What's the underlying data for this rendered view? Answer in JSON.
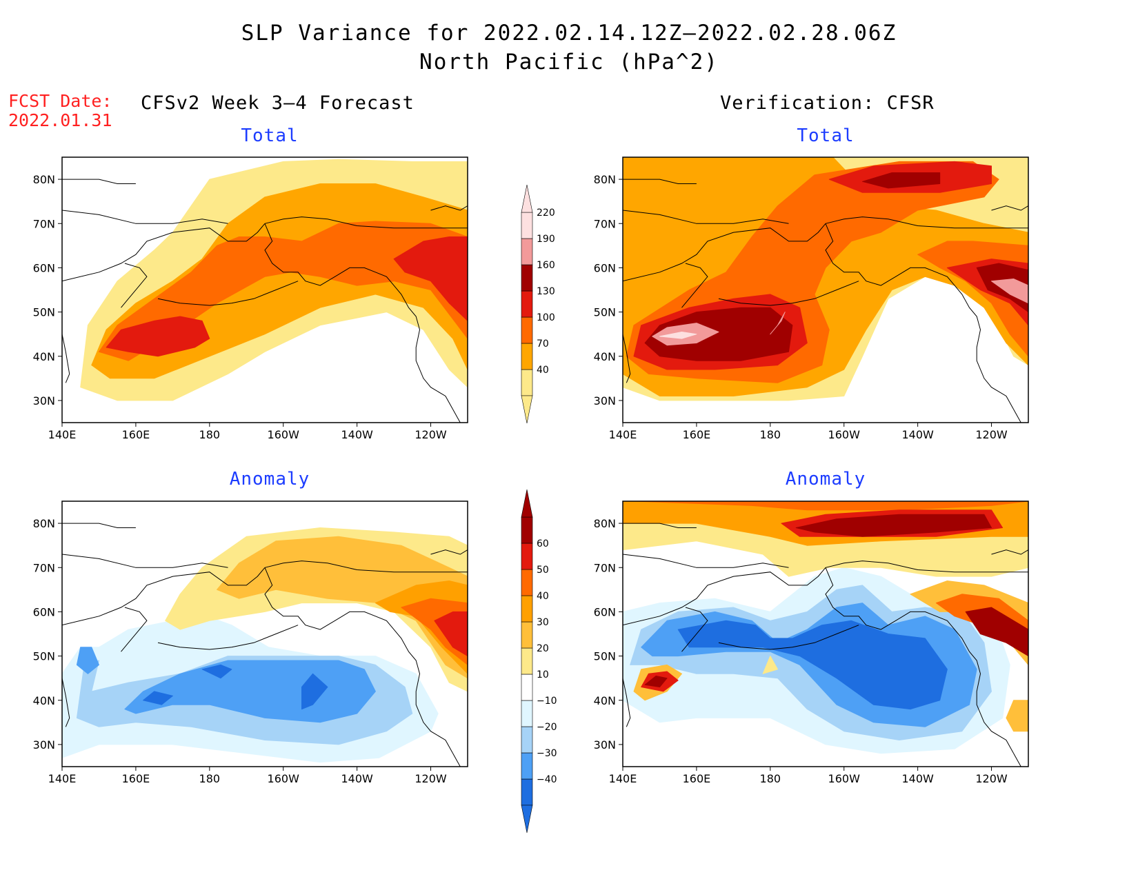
{
  "title": {
    "line1": "SLP Variance for 2022.02.14.12Z–2022.02.28.06Z",
    "line2": "North Pacific (hPa^2)"
  },
  "fcst_date": {
    "label": "FCST Date:",
    "value": "2022.01.31"
  },
  "columns": {
    "left": "CFSv2 Week 3–4 Forecast",
    "right": "Verification: CFSR"
  },
  "panels": [
    {
      "id": "forecast-total",
      "subtitle": "Total"
    },
    {
      "id": "verification-total",
      "subtitle": "Total"
    },
    {
      "id": "forecast-anomaly",
      "subtitle": "Anomaly"
    },
    {
      "id": "verification-anomaly",
      "subtitle": "Anomaly"
    }
  ],
  "axes": {
    "x_ticks": [
      "140E",
      "160E",
      "180",
      "160W",
      "140W",
      "120W"
    ],
    "y_ticks": [
      "30N",
      "40N",
      "50N",
      "60N",
      "70N",
      "80N"
    ],
    "lon_range_degE": [
      140,
      250
    ],
    "lat_range": [
      25,
      85
    ]
  },
  "colorbars": {
    "total": {
      "levels": [
        "40",
        "70",
        "100",
        "130",
        "160",
        "190",
        "220"
      ],
      "colors": [
        "#fde98a",
        "#ffa600",
        "#ff6a00",
        "#e31a0e",
        "#a00000",
        "#f29a9a",
        "#fde0e0"
      ],
      "extend": "both"
    },
    "anomaly": {
      "levels": [
        "−40",
        "−30",
        "−20",
        "−10",
        "10",
        "20",
        "30",
        "40",
        "50",
        "60"
      ],
      "colors": [
        "#1e6ee0",
        "#4ea0f5",
        "#a6d3f7",
        "#e0f6ff",
        "#ffffff",
        "#fde98a",
        "#ffbf3a",
        "#ffa000",
        "#ff6a00",
        "#e31a0e",
        "#a00000"
      ],
      "extend": "both"
    }
  }
}
